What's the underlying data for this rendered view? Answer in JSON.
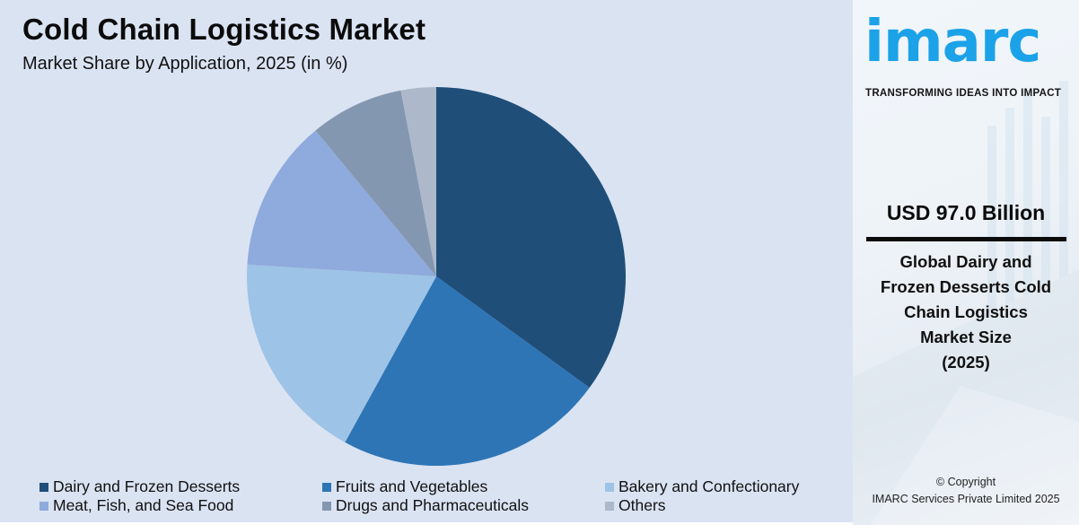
{
  "header": {
    "title": "Cold Chain Logistics Market",
    "subtitle": "Market Share by Application, 2025 (in %)"
  },
  "chart_data": {
    "type": "pie",
    "title": "Cold Chain Logistics Market",
    "subtitle": "Market Share by Application, 2025 (in %)",
    "categories": [
      "Dairy and Frozen Desserts",
      "Fruits and Vegetables",
      "Bakery and Confectionary",
      "Meat, Fish, and Sea Food",
      "Drugs and Pharmaceuticals",
      "Others"
    ],
    "values": [
      35,
      23,
      18,
      13,
      8,
      3
    ],
    "colors": [
      "#1f4e79",
      "#2e75b6",
      "#9dc3e6",
      "#8faadc",
      "#8497b0",
      "#adb9ca"
    ],
    "start_angle": "12 o'clock, clockwise",
    "legend_position": "bottom"
  },
  "legend": {
    "items": [
      {
        "label": "Dairy and Frozen Desserts",
        "color": "#1f4e79"
      },
      {
        "label": "Fruits and Vegetables",
        "color": "#2e75b6"
      },
      {
        "label": "Bakery and Confectionary",
        "color": "#9dc3e6"
      },
      {
        "label": "Meat, Fish, and Sea Food",
        "color": "#8faadc"
      },
      {
        "label": "Drugs and Pharmaceuticals",
        "color": "#8497b0"
      },
      {
        "label": "Others",
        "color": "#adb9ca"
      }
    ]
  },
  "sidebar": {
    "logo_text": "imarc",
    "tagline": "TRANSFORMING IDEAS INTO IMPACT",
    "market_value": "USD 97.0 Billion",
    "description_lines": [
      "Global Dairy and",
      "Frozen Desserts Cold",
      "Chain Logistics",
      "Market Size",
      "(2025)"
    ],
    "copyright_line1": "© Copyright",
    "copyright_line2": "IMARC Services Private Limited 2025",
    "brand_color": "#1ba2e8"
  }
}
